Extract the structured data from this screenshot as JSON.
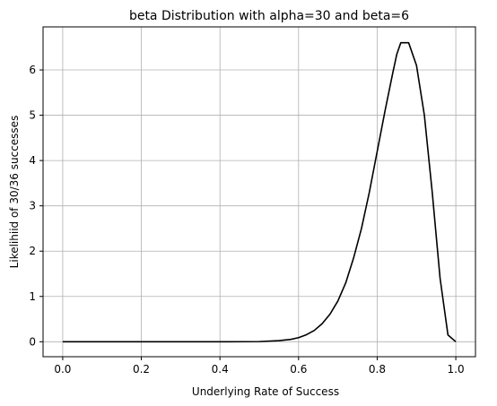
{
  "chart_data": {
    "type": "line",
    "title": "beta Distribution with alpha=30 and beta=6",
    "xlabel": "Underlying Rate of Success",
    "ylabel": "Likelihiid of 30/36 successes",
    "xlim": [
      -0.05,
      1.05
    ],
    "ylim": [
      -0.33,
      6.95
    ],
    "xticks": [
      0.0,
      0.2,
      0.4,
      0.6,
      0.8,
      1.0
    ],
    "xtick_labels": [
      "0.0",
      "0.2",
      "0.4",
      "0.6",
      "0.8",
      "1.0"
    ],
    "yticks": [
      0,
      1,
      2,
      3,
      4,
      5,
      6
    ],
    "ytick_labels": [
      "0",
      "1",
      "2",
      "3",
      "4",
      "5",
      "6"
    ],
    "grid": true,
    "line_color": "#000000",
    "grid_color": "#b0b0b0",
    "series": [
      {
        "x": [
          0.0,
          0.2,
          0.4,
          0.5,
          0.55,
          0.58,
          0.6,
          0.62,
          0.64,
          0.66,
          0.68,
          0.7,
          0.72,
          0.74,
          0.76,
          0.78,
          0.8,
          0.82,
          0.84,
          0.85,
          0.86,
          0.88,
          0.9,
          0.92,
          0.94,
          0.96,
          0.98,
          1.0
        ],
        "y": [
          0.0,
          0.0,
          0.0,
          0.004,
          0.025,
          0.052,
          0.09,
          0.155,
          0.25,
          0.4,
          0.61,
          0.9,
          1.3,
          1.85,
          2.5,
          3.3,
          4.2,
          5.1,
          5.95,
          6.35,
          6.6,
          6.6,
          6.1,
          5.0,
          3.3,
          1.4,
          0.15,
          0.0
        ]
      }
    ]
  }
}
